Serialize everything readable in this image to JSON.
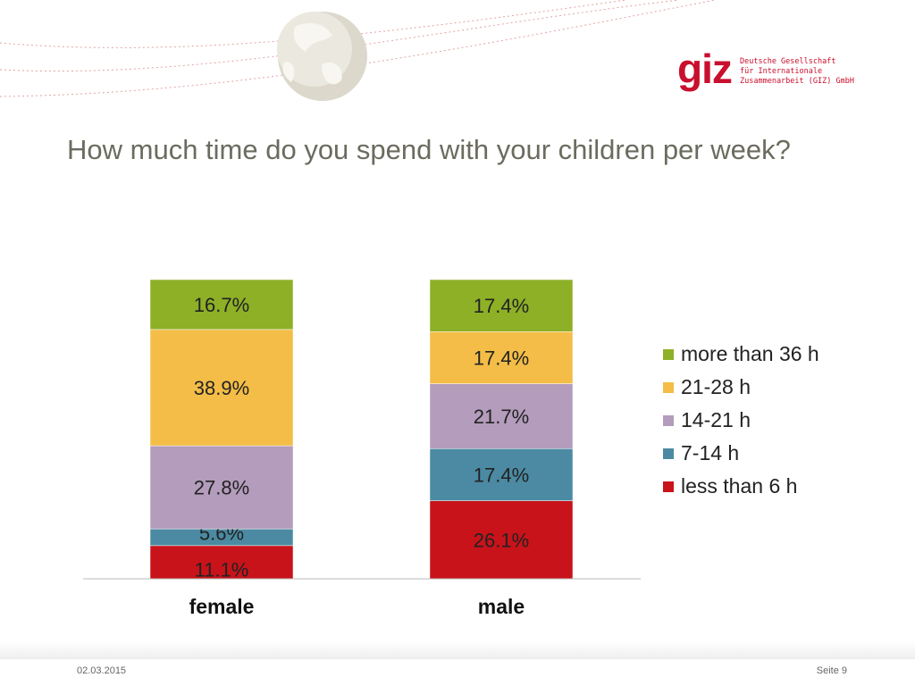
{
  "slide": {
    "title": "How much time do you spend with your children per week?",
    "date": "02.03.2015",
    "page": "Seite 9"
  },
  "logo": {
    "mark": "giz",
    "lines": [
      "Deutsche Gesellschaft",
      "für Internationale",
      "Zusammenarbeit (GIZ) GmbH"
    ],
    "color": "#c8102e"
  },
  "chart_data": {
    "type": "bar",
    "stacked": true,
    "percent_stacked": true,
    "categories": [
      "female",
      "male"
    ],
    "series": [
      {
        "name": "less than 6 h",
        "color": "#c8131a",
        "values": [
          11.1,
          26.1
        ],
        "labels": [
          "11.1%",
          "26.1%"
        ]
      },
      {
        "name": "7-14 h",
        "color": "#4b8aa2",
        "values": [
          5.6,
          17.4
        ],
        "labels": [
          "5.6%",
          "17.4%"
        ]
      },
      {
        "name": "14-21 h",
        "color": "#b49cbc",
        "values": [
          27.8,
          21.7
        ],
        "labels": [
          "27.8%",
          "21.7%"
        ]
      },
      {
        "name": "21-28 h",
        "color": "#f3bd47",
        "values": [
          38.9,
          17.4
        ],
        "labels": [
          "38.9%",
          "17.4%"
        ]
      },
      {
        "name": "more than 36 h",
        "color": "#8db027",
        "values": [
          16.7,
          17.4
        ],
        "labels": [
          "16.7%",
          "17.4%"
        ]
      }
    ],
    "legend_position": "right",
    "grid": false
  }
}
